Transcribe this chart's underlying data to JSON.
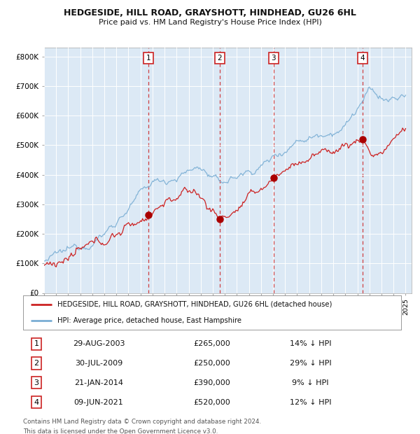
{
  "title": "HEDGESIDE, HILL ROAD, GRAYSHOTT, HINDHEAD, GU26 6HL",
  "subtitle": "Price paid vs. HM Land Registry's House Price Index (HPI)",
  "legend_line1": "HEDGESIDE, HILL ROAD, GRAYSHOTT, HINDHEAD, GU26 6HL (detached house)",
  "legend_line2": "HPI: Average price, detached house, East Hampshire",
  "footer_line1": "Contains HM Land Registry data © Crown copyright and database right 2024.",
  "footer_line2": "This data is licensed under the Open Government Licence v3.0.",
  "transactions": [
    {
      "num": 1,
      "date": "29-AUG-2003",
      "price": 265000,
      "pct": "14%",
      "direction": "↓"
    },
    {
      "num": 2,
      "date": "30-JUL-2009",
      "price": 250000,
      "pct": "29%",
      "direction": "↓"
    },
    {
      "num": 3,
      "date": "21-JAN-2014",
      "price": 390000,
      "pct": "9%",
      "direction": "↓"
    },
    {
      "num": 4,
      "date": "09-JUN-2021",
      "price": 520000,
      "pct": "12%",
      "direction": "↓"
    }
  ],
  "transaction_dates_decimal": [
    2003.66,
    2009.58,
    2014.05,
    2021.44
  ],
  "hpi_color": "#7aaed4",
  "price_color": "#cc2222",
  "marker_color": "#aa0000",
  "vline_color": "#cc2222",
  "bg_color": "#dce9f5",
  "grid_color": "#ffffff",
  "box_color": "#cc2222",
  "ylim": [
    0,
    830000
  ],
  "xlim_start": 1995.0,
  "xlim_end": 2025.5
}
